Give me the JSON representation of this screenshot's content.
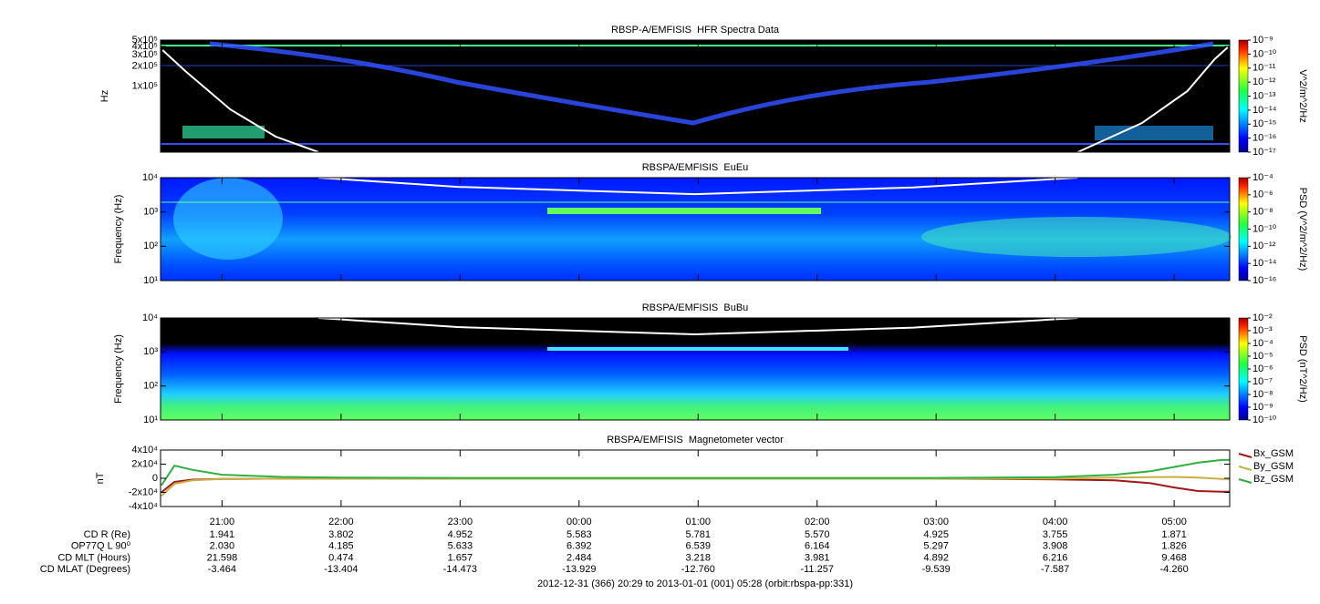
{
  "chart_data": [
    {
      "type": "spectrogram",
      "title": "RBSP-A/EMFISIS  HFR Spectra Data",
      "y_label": "Hz",
      "ylog": true,
      "xlim": [
        20.4833,
        29.4667
      ],
      "ylim": [
        10000,
        500000
      ],
      "yticks": [
        {
          "value": 100000,
          "label": "1x10⁵"
        },
        {
          "value": 200000,
          "label": "2x10⁵"
        },
        {
          "value": 300000,
          "label": "3x10⁵"
        },
        {
          "value": 400000,
          "label": "4x10⁵"
        },
        {
          "value": 500000,
          "label": "5x10⁵"
        }
      ],
      "colorbar_label": "V^2/m^2/Hz",
      "zlim": [
        1e-17,
        1e-09
      ],
      "zticks": [
        {
          "value": 1e-09,
          "label": "10⁻⁹"
        },
        {
          "value": 1e-10,
          "label": "10⁻¹⁰"
        },
        {
          "value": 1e-11,
          "label": "10⁻¹¹"
        },
        {
          "value": 1e-12,
          "label": "10⁻¹²"
        },
        {
          "value": 1e-13,
          "label": "10⁻¹³"
        },
        {
          "value": 1e-14,
          "label": "10⁻¹⁴"
        },
        {
          "value": 1e-15,
          "label": "10⁻¹⁵"
        },
        {
          "value": 1e-16,
          "label": "10⁻¹⁶"
        },
        {
          "value": 1e-17,
          "label": "10⁻¹⁷"
        }
      ],
      "x": [
        20.5,
        20.69,
        21.07,
        21.45,
        21.81,
        25.0,
        28.19,
        28.73,
        29.11,
        29.34,
        29.45
      ],
      "series": [
        {
          "color": "#ffffff",
          "values": [
            352000,
            170000,
            44500,
            17200,
            10000,
            null,
            10000,
            27700,
            84000,
            256000,
            388000
          ]
        }
      ]
    },
    {
      "type": "spectrogram",
      "title": "RBSPA/EMFISIS  EuEu",
      "y_label": "Frequency (Hz)",
      "ylog": true,
      "xlim": [
        20.4833,
        29.4667
      ],
      "ylim": [
        10,
        10000
      ],
      "yticks": [
        {
          "value": 10,
          "label": "10¹"
        },
        {
          "value": 100,
          "label": "10²"
        },
        {
          "value": 1000,
          "label": "10³"
        },
        {
          "value": 10000,
          "label": "10⁴"
        }
      ],
      "colorbar_label": "PSD (V^2/m^2/Hz)",
      "zlim": [
        1e-16,
        0.0001
      ],
      "zticks": [
        {
          "value": 0.0001,
          "label": "10⁻⁴"
        },
        {
          "value": 1e-06,
          "label": "10⁻⁶"
        },
        {
          "value": 1e-08,
          "label": "10⁻⁸"
        },
        {
          "value": 1e-10,
          "label": "10⁻¹⁰"
        },
        {
          "value": 1e-12,
          "label": "10⁻¹²"
        },
        {
          "value": 1e-14,
          "label": "10⁻¹⁴"
        },
        {
          "value": 1e-16,
          "label": "10⁻¹⁶"
        }
      ],
      "x": [
        21.81,
        22.98,
        24.97,
        26.81,
        28.19
      ],
      "series": [
        {
          "color": "#ffffff",
          "values": [
            10000,
            5400,
            3300,
            5200,
            10000
          ]
        }
      ]
    },
    {
      "type": "spectrogram",
      "title": "RBSPA/EMFISIS  BuBu",
      "y_label": "Frequency (Hz)",
      "ylog": true,
      "xlim": [
        20.4833,
        29.4667
      ],
      "ylim": [
        10,
        10000
      ],
      "yticks": [
        {
          "value": 10,
          "label": "10¹"
        },
        {
          "value": 100,
          "label": "10²"
        },
        {
          "value": 1000,
          "label": "10³"
        },
        {
          "value": 10000,
          "label": "10⁴"
        }
      ],
      "colorbar_label": "PSD (nT^2/Hz)",
      "zlim": [
        1e-10,
        0.01
      ],
      "zticks": [
        {
          "value": 0.01,
          "label": "10⁻²"
        },
        {
          "value": 0.001,
          "label": "10⁻³"
        },
        {
          "value": 0.0001,
          "label": "10⁻⁴"
        },
        {
          "value": 1e-05,
          "label": "10⁻⁵"
        },
        {
          "value": 1e-06,
          "label": "10⁻⁶"
        },
        {
          "value": 1e-07,
          "label": "10⁻⁷"
        },
        {
          "value": 1e-08,
          "label": "10⁻⁸"
        },
        {
          "value": 1e-09,
          "label": "10⁻⁹"
        },
        {
          "value": 1e-10,
          "label": "10⁻¹⁰"
        }
      ],
      "x": [
        21.81,
        22.98,
        24.97,
        26.81,
        28.19
      ],
      "series": [
        {
          "color": "#ffffff",
          "values": [
            10000,
            5400,
            3300,
            5200,
            10000
          ]
        }
      ]
    },
    {
      "type": "line",
      "title": "RBSPA/EMFISIS  Magnetometer vector",
      "y_label": "nT",
      "legend": "right",
      "xlim": [
        20.4833,
        29.4667
      ],
      "ylim": [
        -40000,
        40000
      ],
      "xticks": [
        {
          "value": 21,
          "label": "21:00"
        },
        {
          "value": 22,
          "label": "22:00"
        },
        {
          "value": 23,
          "label": "23:00"
        },
        {
          "value": 24,
          "label": "00:00"
        },
        {
          "value": 25,
          "label": "01:00"
        },
        {
          "value": 26,
          "label": "02:00"
        },
        {
          "value": 27,
          "label": "03:00"
        },
        {
          "value": 28,
          "label": "04:00"
        },
        {
          "value": 29,
          "label": "05:00"
        }
      ],
      "yticks": [
        {
          "value": 40000,
          "label": "4x10⁴"
        },
        {
          "value": 20000,
          "label": "2x10⁴"
        },
        0,
        {
          "value": -20000,
          "label": "-2x10⁴"
        },
        {
          "value": -40000,
          "label": "-4x10⁴"
        }
      ],
      "x": [
        20.49,
        20.6,
        20.75,
        21,
        21.5,
        22,
        23,
        24,
        25,
        26,
        27,
        28,
        28.5,
        28.8,
        29,
        29.2,
        29.4,
        29.47
      ],
      "series": [
        {
          "name": "Bx_GSM",
          "color": "#a01818",
          "values": [
            -20000,
            -5000,
            -2000,
            -1000,
            -500,
            -300,
            -200,
            -200,
            -200,
            -200,
            -300,
            -1500,
            -3000,
            -7000,
            -13000,
            -18000,
            -19000,
            -19000
          ]
        },
        {
          "name": "By_GSM",
          "color": "#c8b040",
          "values": [
            -25000,
            -8000,
            -3000,
            -1000,
            -500,
            -300,
            -200,
            -200,
            -200,
            -200,
            -300,
            -500,
            1000,
            1500,
            2000,
            1000,
            -1000,
            -1000
          ]
        },
        {
          "name": "Bz_GSM",
          "color": "#30b040",
          "values": [
            -10000,
            18000,
            12000,
            5000,
            2000,
            1000,
            500,
            500,
            500,
            500,
            500,
            1500,
            5000,
            10000,
            16000,
            22000,
            26000,
            26000
          ]
        }
      ]
    }
  ],
  "ephemeris": {
    "rows": [
      {
        "label": "CD R (Re)",
        "values": [
          "1.941",
          "3.802",
          "4.952",
          "5.583",
          "5.781",
          "5.570",
          "4.925",
          "3.755",
          "1.871"
        ]
      },
      {
        "label": "OP77Q L 90⁰",
        "values": [
          "2.030",
          "4.185",
          "5.633",
          "6.392",
          "6.539",
          "6.164",
          "5.297",
          "3.908",
          "1.826"
        ]
      },
      {
        "label": "CD MLT (Hours)",
        "values": [
          "21.598",
          "0.474",
          "1.657",
          "2.484",
          "3.218",
          "3.981",
          "4.892",
          "6.216",
          "9.468"
        ]
      },
      {
        "label": "CD MLAT (Degrees)",
        "values": [
          "-3.464",
          "-13.404",
          "-14.473",
          "-13.929",
          "-12.760",
          "-11.257",
          "-9.539",
          "-7.587",
          "-4.260"
        ]
      }
    ]
  },
  "footer": "2012-12-31 (366) 20:29 to 2013-01-01 (001) 05:28 (orbit:rbspa-pp:331)"
}
